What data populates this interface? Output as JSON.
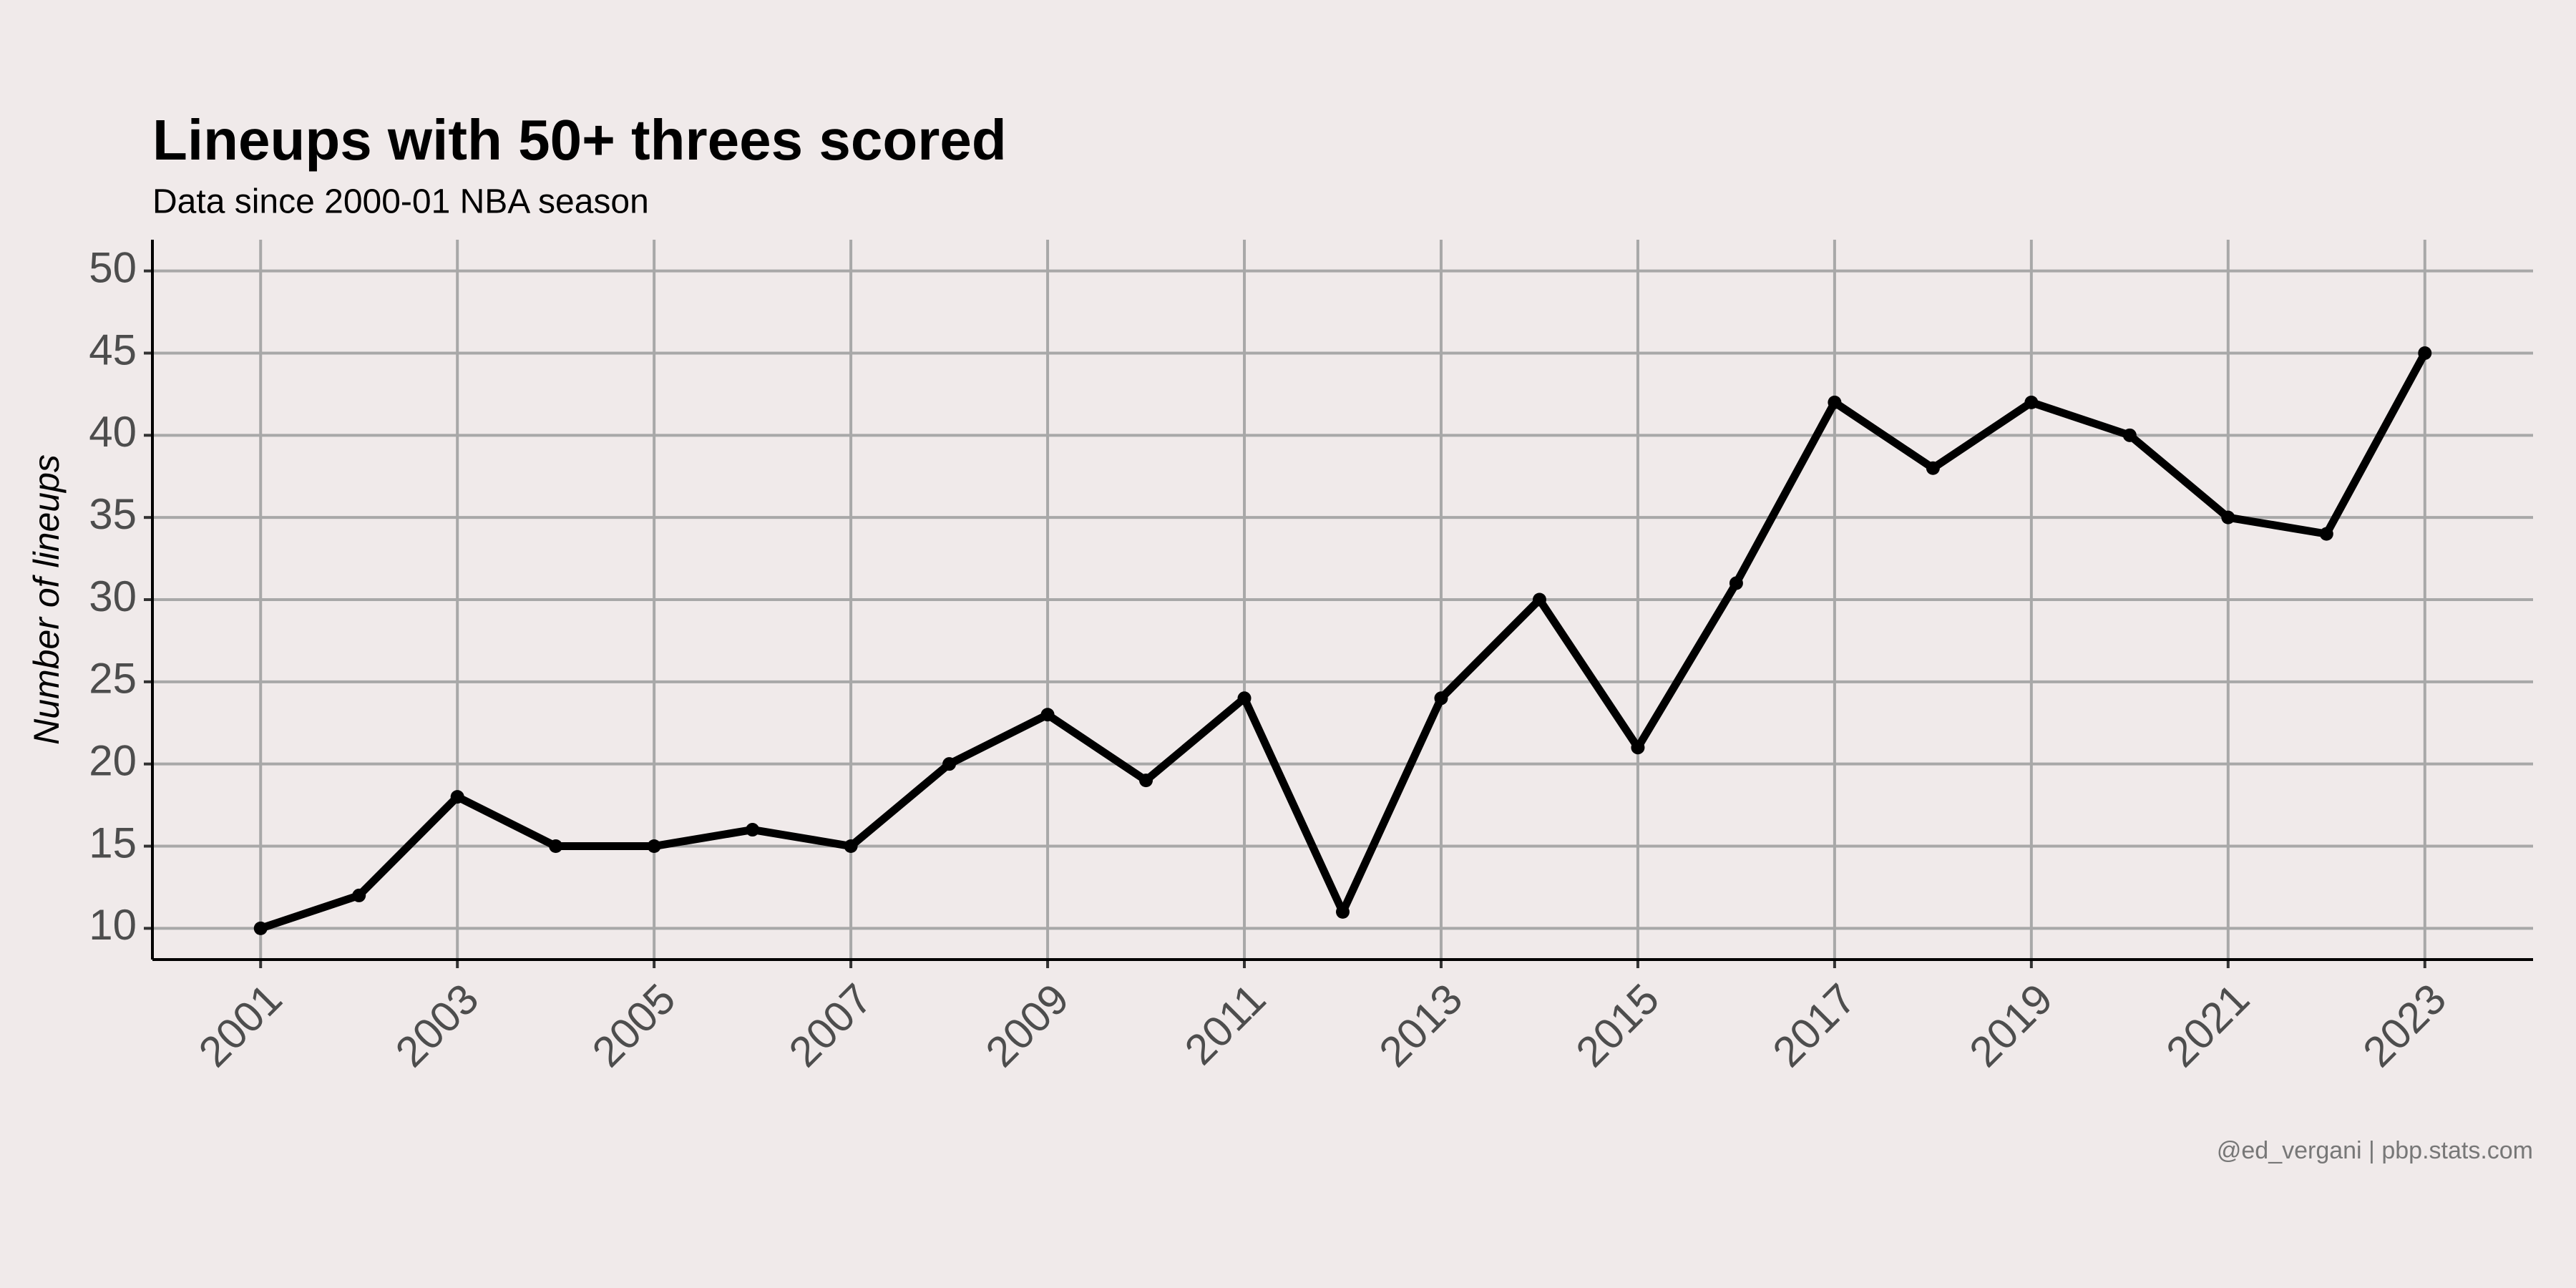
{
  "chart_data": {
    "type": "line",
    "title": "Lineups with 50+ threes scored",
    "subtitle": "Data since 2000-01 NBA season",
    "y_label": "Number of lineups",
    "caption": "@ed_vergani | pbp.stats.com",
    "x": [
      2001,
      2002,
      2003,
      2004,
      2005,
      2006,
      2007,
      2008,
      2009,
      2010,
      2011,
      2012,
      2013,
      2014,
      2015,
      2016,
      2017,
      2018,
      2019,
      2020,
      2021,
      2022,
      2023
    ],
    "values": [
      10,
      12,
      18,
      15,
      15,
      16,
      15,
      20,
      23,
      19,
      24,
      11,
      24,
      30,
      21,
      31,
      42,
      38,
      42,
      40,
      35,
      34,
      45
    ],
    "color": "#000000",
    "xlim": [
      1999.9,
      2024.1
    ],
    "xticks": [
      2001,
      2003,
      2005,
      2007,
      2009,
      2011,
      2013,
      2015,
      2017,
      2019,
      2021,
      2023
    ],
    "ylim": [
      8.1,
      51.9
    ],
    "yticks": [
      10,
      15,
      20,
      25,
      30,
      35,
      40,
      45,
      50
    ],
    "grid": true
  }
}
